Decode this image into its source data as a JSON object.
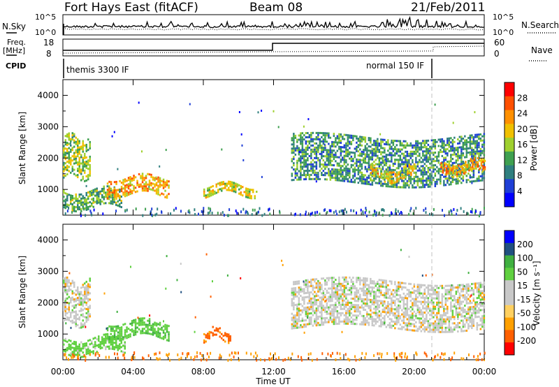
{
  "header": {
    "station": "Fort Hays East (fitACF)",
    "beam": "Beam 08",
    "date": "21/Feb/2011"
  },
  "panels": {
    "nsky_label": "N.Sky",
    "nsearch_label": "N.Search",
    "nsky_ticks": [
      "10^5",
      "10^0"
    ],
    "nsearch_ticks": [
      "10^5",
      "10^0"
    ],
    "freq_label_1": "Freq.",
    "freq_label_2": "[MHz]",
    "freq_ticks": [
      "18",
      "8"
    ],
    "nave_label": "Nave",
    "nave_ticks": [
      "60",
      "0"
    ],
    "cpid_label": "CPID",
    "cpid_1": "themis 3300 IF",
    "cpid_2": "normal 150 IF"
  },
  "colors": {
    "power_scale": [
      "#0000ff",
      "#1f3fd6",
      "#2f7f7f",
      "#3fa050",
      "#9fd02f",
      "#f0c000",
      "#ff9000",
      "#ff5000",
      "#ff0000"
    ],
    "velocity_scale": [
      "#ff0000",
      "#ff6000",
      "#ffa000",
      "#ffd060",
      "#c8c8c8",
      "#c8c8c8",
      "#60d040",
      "#40b040",
      "#205080",
      "#0000ff"
    ],
    "ground_scatter": "#c8c8c8"
  },
  "chart_data": [
    {
      "type": "heatmap",
      "title": "",
      "xlabel": "",
      "ylabel": "Slant Range [km]",
      "colorbar_label": "Power [dB]",
      "colorbar_ticks": [
        "28",
        "24",
        "20",
        "16",
        "12",
        "8",
        "4"
      ],
      "xlim": [
        "00:00",
        "00:00"
      ],
      "ylim": [
        180,
        4500
      ],
      "y_ticks": [
        "4000",
        "3000",
        "2000",
        "1000"
      ],
      "regions": [
        {
          "t_start": 0.0,
          "t_end": 3.3,
          "range_low": 450,
          "range_high": 1000,
          "power_db": 12
        },
        {
          "t_start": 2.5,
          "t_end": 6.0,
          "range_low": 800,
          "range_high": 1400,
          "power_db": 20
        },
        {
          "t_start": 8.0,
          "t_end": 11.0,
          "range_low": 850,
          "range_high": 1150,
          "power_db": 16
        },
        {
          "t_start": 0.0,
          "t_end": 1.5,
          "range_low": 1400,
          "range_high": 2700,
          "power_db": 14
        },
        {
          "t_start": 13.0,
          "t_end": 24.0,
          "range_low": 1200,
          "range_high": 2700,
          "power_db": 10
        },
        {
          "t_start": 17.5,
          "t_end": 20.0,
          "range_low": 1300,
          "range_high": 1700,
          "power_db": 18
        },
        {
          "t_start": 21.5,
          "t_end": 24.0,
          "range_low": 1500,
          "range_high": 1900,
          "power_db": 20
        }
      ]
    },
    {
      "type": "heatmap",
      "title": "",
      "xlabel": "Time UT",
      "ylabel": "Slant Range [km]",
      "colorbar_label": "Velocity [m s⁻¹]",
      "colorbar_ticks": [
        "200",
        "100",
        "50",
        "15",
        "-15",
        "-50",
        "-100",
        "-200"
      ],
      "xlim": [
        "00:00",
        "00:00"
      ],
      "ylim": [
        180,
        4500
      ],
      "x_ticks": [
        "00:00",
        "04:00",
        "08:00",
        "12:00",
        "16:00",
        "20:00",
        "00:00"
      ],
      "y_ticks": [
        "4000",
        "3000",
        "2000",
        "1000"
      ],
      "regions": [
        {
          "t_start": 0.0,
          "t_end": 3.5,
          "range_low": 400,
          "range_high": 900,
          "velocity": 30
        },
        {
          "t_start": 2.5,
          "t_end": 6.0,
          "range_low": 900,
          "range_high": 1400,
          "velocity": 40
        },
        {
          "t_start": 8.0,
          "t_end": 9.5,
          "range_low": 850,
          "range_high": 1150,
          "velocity": -60
        },
        {
          "t_start": 13.0,
          "t_end": 24.0,
          "range_low": 1200,
          "range_high": 2700,
          "velocity": 0
        },
        {
          "t_start": 0.0,
          "t_end": 1.5,
          "range_low": 1300,
          "range_high": 2700,
          "velocity": 0
        }
      ]
    }
  ]
}
